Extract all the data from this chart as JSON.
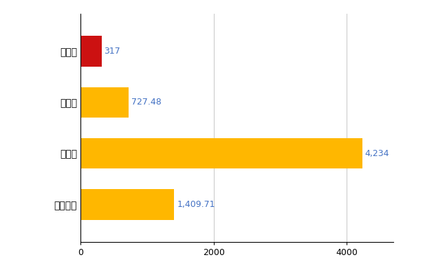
{
  "categories": [
    "全国平均",
    "県最大",
    "県平均",
    "大月市"
  ],
  "values": [
    1409.71,
    4234,
    727.48,
    317
  ],
  "colors": [
    "#FFB700",
    "#FFB700",
    "#FFB700",
    "#CC1111"
  ],
  "labels": [
    "1,409.71",
    "4,234",
    "727.48",
    "317"
  ],
  "label_color": "#4472C4",
  "xlim": [
    0,
    4700
  ],
  "xticks": [
    0,
    2000,
    4000
  ],
  "xtick_labels": [
    "0",
    "2000",
    "4000"
  ],
  "background_color": "#FFFFFF",
  "grid_color": "#CCCCCC",
  "bar_height": 0.6
}
